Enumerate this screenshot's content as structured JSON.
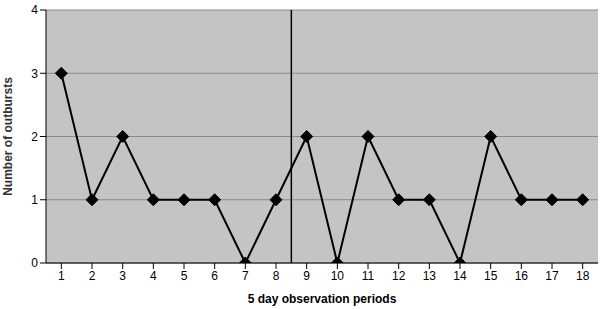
{
  "chart_data": {
    "type": "line",
    "x_label": "5 day observation periods",
    "y_label": "Number of outbursts",
    "x": [
      1,
      2,
      3,
      4,
      5,
      6,
      7,
      8,
      9,
      10,
      11,
      12,
      13,
      14,
      15,
      16,
      17,
      18
    ],
    "values": [
      3,
      1,
      2,
      1,
      1,
      1,
      0,
      1,
      2,
      0,
      2,
      1,
      1,
      0,
      2,
      1,
      1,
      1
    ],
    "color": "#000000",
    "marker": "diamond",
    "xlim": [
      0.5,
      18.5
    ],
    "xticks": [
      1,
      2,
      3,
      4,
      5,
      6,
      7,
      8,
      9,
      10,
      11,
      12,
      13,
      14,
      15,
      16,
      17,
      18
    ],
    "ylim": [
      0,
      4
    ],
    "yticks": [
      0,
      1,
      2,
      3,
      4
    ],
    "grid": true,
    "phase_change_x": 8.5
  }
}
